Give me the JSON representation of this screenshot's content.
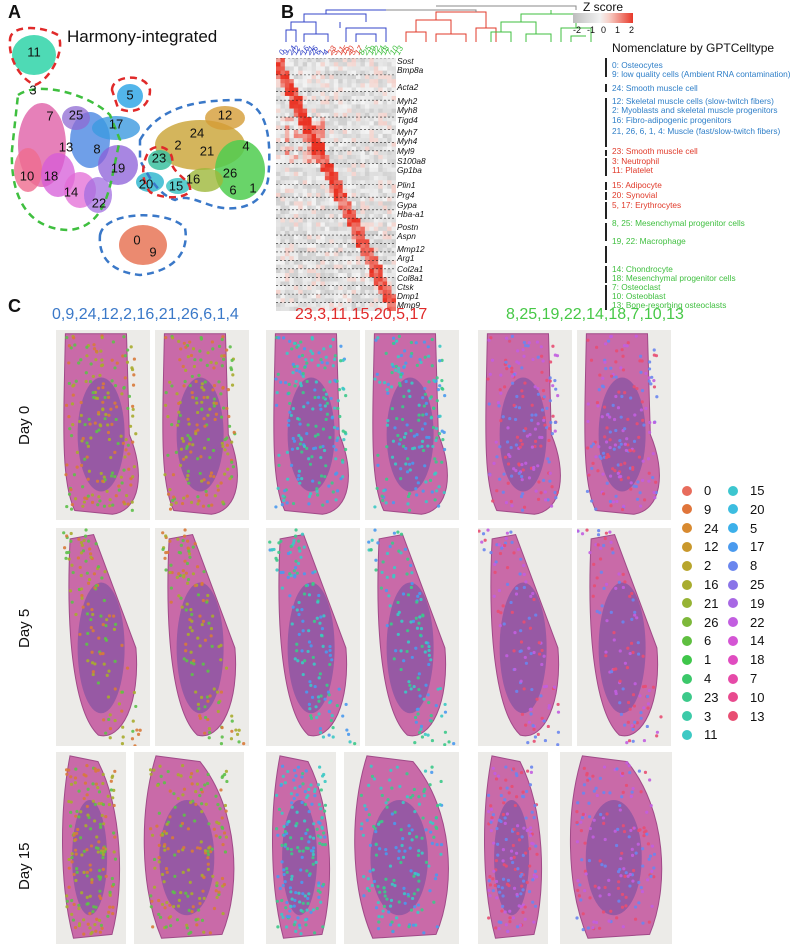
{
  "panel_labels": {
    "a": "A",
    "b": "B",
    "c": "C"
  },
  "umap": {
    "title": "Harmony-integrated",
    "clusters": [
      {
        "n": "11",
        "x": 34,
        "y": 52,
        "c": "#2fd3a8"
      },
      {
        "n": "3",
        "x": 33,
        "y": 90,
        "c": "#3ed1b9"
      },
      {
        "n": "7",
        "x": 50,
        "y": 116,
        "c": "#d94fd1"
      },
      {
        "n": "25",
        "x": 76,
        "y": 115,
        "c": "#8f6ad3"
      },
      {
        "n": "5",
        "x": 130,
        "y": 95,
        "c": "#34a8e6"
      },
      {
        "n": "17",
        "x": 116,
        "y": 124,
        "c": "#3c9ae0"
      },
      {
        "n": "13",
        "x": 66,
        "y": 147,
        "c": "#e55a8a"
      },
      {
        "n": "8",
        "x": 97,
        "y": 149,
        "c": "#3f7fe0"
      },
      {
        "n": "19",
        "x": 118,
        "y": 168,
        "c": "#8b5ed8"
      },
      {
        "n": "10",
        "x": 27,
        "y": 176,
        "c": "#ef6b8f"
      },
      {
        "n": "18",
        "x": 51,
        "y": 176,
        "c": "#d65bd8"
      },
      {
        "n": "14",
        "x": 71,
        "y": 192,
        "c": "#e36bd6"
      },
      {
        "n": "22",
        "x": 99,
        "y": 203,
        "c": "#a16ee0"
      },
      {
        "n": "12",
        "x": 225,
        "y": 115,
        "c": "#c9a333"
      },
      {
        "n": "24",
        "x": 197,
        "y": 133,
        "c": "#d59c36"
      },
      {
        "n": "2",
        "x": 178,
        "y": 145,
        "c": "#b6a230"
      },
      {
        "n": "21",
        "x": 207,
        "y": 151,
        "c": "#9db83a"
      },
      {
        "n": "4",
        "x": 246,
        "y": 146,
        "c": "#58c24f"
      },
      {
        "n": "23",
        "x": 159,
        "y": 158,
        "c": "#3cc1a0"
      },
      {
        "n": "20",
        "x": 146,
        "y": 184,
        "c": "#35b9d0"
      },
      {
        "n": "15",
        "x": 176,
        "y": 186,
        "c": "#3ec4c4"
      },
      {
        "n": "16",
        "x": 193,
        "y": 179,
        "c": "#a0b534"
      },
      {
        "n": "26",
        "x": 230,
        "y": 173,
        "c": "#6abb3c"
      },
      {
        "n": "6",
        "x": 233,
        "y": 190,
        "c": "#4fcc4f"
      },
      {
        "n": "1",
        "x": 253,
        "y": 188,
        "c": "#38c845"
      },
      {
        "n": "0",
        "x": 137,
        "y": 240,
        "c": "#e87557"
      },
      {
        "n": "9",
        "x": 153,
        "y": 252,
        "c": "#de8a3e"
      }
    ]
  },
  "heatmap": {
    "zscore_title": "Z score",
    "zscore_ticks": [
      "-2",
      "-1",
      "0",
      "1",
      "2"
    ],
    "nomenclature_title": "Nomenclature by GPTCelltype",
    "columns": [
      {
        "n": "0",
        "c": "#3344c8"
      },
      {
        "n": "9",
        "c": "#3344c8"
      },
      {
        "n": "24",
        "c": "#3344c8"
      },
      {
        "n": "12",
        "c": "#3344c8"
      },
      {
        "n": "2",
        "c": "#3344c8"
      },
      {
        "n": "16",
        "c": "#3344c8"
      },
      {
        "n": "21",
        "c": "#3344c8"
      },
      {
        "n": "26",
        "c": "#3344c8"
      },
      {
        "n": "6",
        "c": "#3344c8"
      },
      {
        "n": "1",
        "c": "#3344c8"
      },
      {
        "n": "4",
        "c": "#3344c8"
      },
      {
        "n": "23",
        "c": "#e03a2a"
      },
      {
        "n": "3",
        "c": "#e03a2a"
      },
      {
        "n": "11",
        "c": "#e03a2a"
      },
      {
        "n": "15",
        "c": "#e03a2a"
      },
      {
        "n": "20",
        "c": "#e03a2a"
      },
      {
        "n": "5",
        "c": "#e03a2a"
      },
      {
        "n": "17",
        "c": "#e03a2a"
      },
      {
        "n": "8",
        "c": "#3fbf3f"
      },
      {
        "n": "25",
        "c": "#3fbf3f"
      },
      {
        "n": "19",
        "c": "#3fbf3f"
      },
      {
        "n": "22",
        "c": "#3fbf3f"
      },
      {
        "n": "14",
        "c": "#3fbf3f"
      },
      {
        "n": "18",
        "c": "#3fbf3f"
      },
      {
        "n": "7",
        "c": "#3fbf3f"
      },
      {
        "n": "10",
        "c": "#3fbf3f"
      },
      {
        "n": "13",
        "c": "#3fbf3f"
      }
    ],
    "genes": [
      {
        "g": "Sost",
        "y": 62
      },
      {
        "g": "Bmp8a",
        "y": 71
      },
      {
        "g": "Acta2",
        "y": 88
      },
      {
        "g": "Myh2",
        "y": 102
      },
      {
        "g": "Myh8",
        "y": 111
      },
      {
        "g": "Tigd4",
        "y": 121
      },
      {
        "g": "Myh7",
        "y": 133
      },
      {
        "g": "Myh4",
        "y": 142
      },
      {
        "g": "Myl9",
        "y": 152
      },
      {
        "g": "S100a8",
        "y": 162
      },
      {
        "g": "Gp1ba",
        "y": 171
      },
      {
        "g": "Plin1",
        "y": 186
      },
      {
        "g": "Prg4",
        "y": 196
      },
      {
        "g": "Gypa",
        "y": 206
      },
      {
        "g": "Hba-a1",
        "y": 215
      },
      {
        "g": "Postn",
        "y": 228
      },
      {
        "g": "Aspn",
        "y": 237
      },
      {
        "g": "Mmp12",
        "y": 250
      },
      {
        "g": "Arg1",
        "y": 259
      },
      {
        "g": "Col2a1",
        "y": 270
      },
      {
        "g": "Col8a1",
        "y": 279
      },
      {
        "g": "Ctsk",
        "y": 288
      },
      {
        "g": "Dmp1",
        "y": 297
      },
      {
        "g": "Mmp9",
        "y": 306
      }
    ],
    "annotations": [
      {
        "t": "0: Osteocytes",
        "y": 66,
        "c": "#2f7fc8"
      },
      {
        "t": "9: low quality cells (Ambient RNA contamination)",
        "y": 75,
        "c": "#2f7fc8"
      },
      {
        "t": "24: Smooth muscle cell",
        "y": 89,
        "c": "#2f7fc8"
      },
      {
        "t": "12: Skeletal muscle cells (slow-twitch fibers)",
        "y": 102,
        "c": "#2f7fc8"
      },
      {
        "t": "2: Myoblasts and skeletal muscle progenitors",
        "y": 111,
        "c": "#2f7fc8"
      },
      {
        "t": "16: Fibro-adipogenic progenitors",
        "y": 121,
        "c": "#2f7fc8"
      },
      {
        "t": "21, 26, 6, 1, 4: Muscle  (fast/slow-twitch fibers)",
        "y": 132,
        "c": "#2f7fc8"
      },
      {
        "t": "23: Smooth muscle cell",
        "y": 152,
        "c": "#e03a2a"
      },
      {
        "t": "3: Neutrophil",
        "y": 162,
        "c": "#e03a2a"
      },
      {
        "t": "11: Platelet",
        "y": 171,
        "c": "#e03a2a"
      },
      {
        "t": "15: Adipocyte",
        "y": 186,
        "c": "#e03a2a"
      },
      {
        "t": "20: Synovial",
        "y": 196,
        "c": "#e03a2a"
      },
      {
        "t": "5, 17: Erythrocytes",
        "y": 206,
        "c": "#e03a2a"
      },
      {
        "t": "8, 25: Mesenchymal progenitor cells",
        "y": 224,
        "c": "#3fbf3f"
      },
      {
        "t": "19, 22: Macrophage",
        "y": 242,
        "c": "#3fbf3f"
      },
      {
        "t": "14: Chondrocyte",
        "y": 270,
        "c": "#3fbf3f"
      },
      {
        "t": "18: Mesenchymal progenitor cells",
        "y": 279,
        "c": "#3fbf3f"
      },
      {
        "t": "7: Osteoclast",
        "y": 288,
        "c": "#3fbf3f"
      },
      {
        "t": "10: Osteoblast",
        "y": 297,
        "c": "#3fbf3f"
      },
      {
        "t": "13: Bone-resorbing osteoclasts",
        "y": 306,
        "c": "#3fbf3f"
      }
    ]
  },
  "spatial": {
    "groups": [
      {
        "title": "0,9,24,12,2,16,21,26,6,1,4",
        "color": "#3a78c8"
      },
      {
        "title": "23,3,11,15,20,5,17",
        "color": "#e02a2a"
      },
      {
        "title": "8,25,19,22,14,18,7,10,13",
        "color": "#46c846"
      }
    ],
    "days": [
      "Day 0",
      "Day 5",
      "Day 15"
    ],
    "legend": [
      {
        "n": "0",
        "c": "#e86c5c"
      },
      {
        "n": "9",
        "c": "#e0753a"
      },
      {
        "n": "24",
        "c": "#d88a30"
      },
      {
        "n": "12",
        "c": "#c9982c"
      },
      {
        "n": "2",
        "c": "#b8a52c"
      },
      {
        "n": "16",
        "c": "#a8ac2e"
      },
      {
        "n": "21",
        "c": "#96b334"
      },
      {
        "n": "26",
        "c": "#7db83a"
      },
      {
        "n": "6",
        "c": "#5fbf40"
      },
      {
        "n": "1",
        "c": "#3fc64a"
      },
      {
        "n": "4",
        "c": "#3bc86a"
      },
      {
        "n": "23",
        "c": "#3cc98a"
      },
      {
        "n": "3",
        "c": "#3ccaa8"
      },
      {
        "n": "11",
        "c": "#3cc9c4"
      },
      {
        "n": "15",
        "c": "#3cc6cf"
      },
      {
        "n": "20",
        "c": "#3cbde0"
      },
      {
        "n": "5",
        "c": "#3cb0ea"
      },
      {
        "n": "17",
        "c": "#4a9aee"
      },
      {
        "n": "8",
        "c": "#6a86ee"
      },
      {
        "n": "25",
        "c": "#8a74e8"
      },
      {
        "n": "19",
        "c": "#a868e4"
      },
      {
        "n": "22",
        "c": "#c25ee0"
      },
      {
        "n": "14",
        "c": "#d455d4"
      },
      {
        "n": "18",
        "c": "#e04cc0"
      },
      {
        "n": "7",
        "c": "#e64aa8"
      },
      {
        "n": "10",
        "c": "#e84a8e"
      },
      {
        "n": "13",
        "c": "#e84e72"
      }
    ]
  }
}
